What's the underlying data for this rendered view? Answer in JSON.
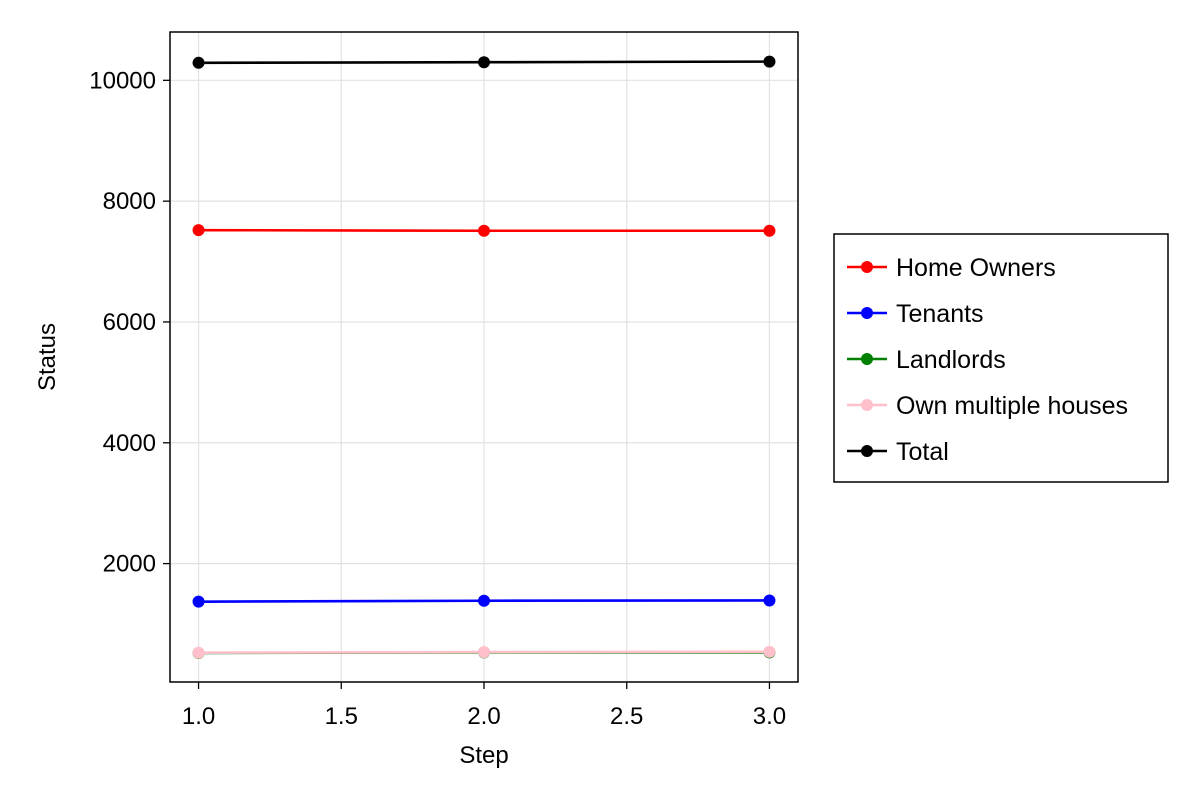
{
  "chart_data": {
    "type": "line",
    "title": "",
    "xlabel": "Step",
    "ylabel": "Status",
    "x": [
      1.0,
      2.0,
      3.0
    ],
    "xlim": [
      0.9,
      3.1
    ],
    "ylim": [
      40,
      10800
    ],
    "xticks": [
      1.0,
      1.5,
      2.0,
      2.5,
      3.0
    ],
    "xtick_labels": [
      "1.0",
      "1.5",
      "2.0",
      "2.5",
      "3.0"
    ],
    "yticks": [
      2000,
      4000,
      6000,
      8000,
      10000
    ],
    "ytick_labels": [
      "2000",
      "4000",
      "6000",
      "8000",
      "10000"
    ],
    "grid": true,
    "legend_position": "right",
    "series": [
      {
        "name": "Home Owners",
        "color": "#ff0000",
        "values": [
          7520,
          7510,
          7510
        ]
      },
      {
        "name": "Tenants",
        "color": "#0000ff",
        "values": [
          1370,
          1385,
          1390
        ]
      },
      {
        "name": "Landlords",
        "color": "#008000",
        "values": [
          520,
          530,
          530
        ]
      },
      {
        "name": "Own multiple houses",
        "color": "#ffc0cb",
        "values": [
          525,
          535,
          540
        ]
      },
      {
        "name": "Total",
        "color": "#000000",
        "values": [
          10290,
          10300,
          10310
        ]
      }
    ]
  }
}
